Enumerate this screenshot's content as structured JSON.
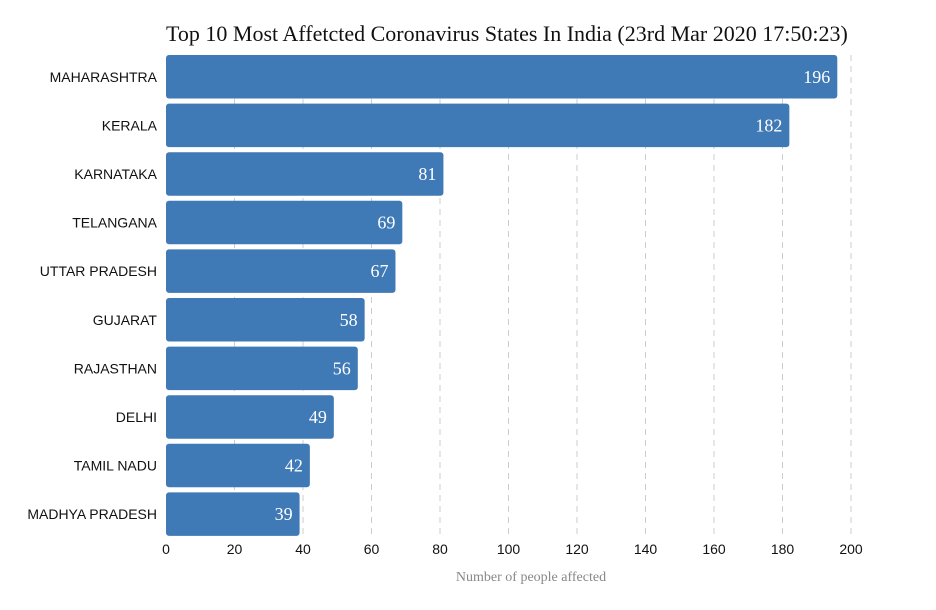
{
  "chart_data": {
    "type": "bar",
    "orientation": "horizontal",
    "title": "Top 10 Most Affetcted Coronavirus States In India (23rd Mar 2020 17:50:23)",
    "xlabel": "Number of people affected",
    "categories": [
      "MAHARASHTRA",
      "KERALA",
      "KARNATAKA",
      "TELANGANA",
      "UTTAR PRADESH",
      "GUJARAT",
      "RAJASTHAN",
      "DELHI",
      "TAMIL NADU",
      "MADHYA PRADESH"
    ],
    "values": [
      196,
      182,
      81,
      69,
      67,
      58,
      56,
      49,
      42,
      39
    ],
    "xlim": [
      0,
      200
    ],
    "xticks": [
      0,
      20,
      40,
      60,
      80,
      100,
      120,
      140,
      160,
      180,
      200
    ],
    "grid": "vertical dashed",
    "bar_color": "#3f79b6"
  }
}
